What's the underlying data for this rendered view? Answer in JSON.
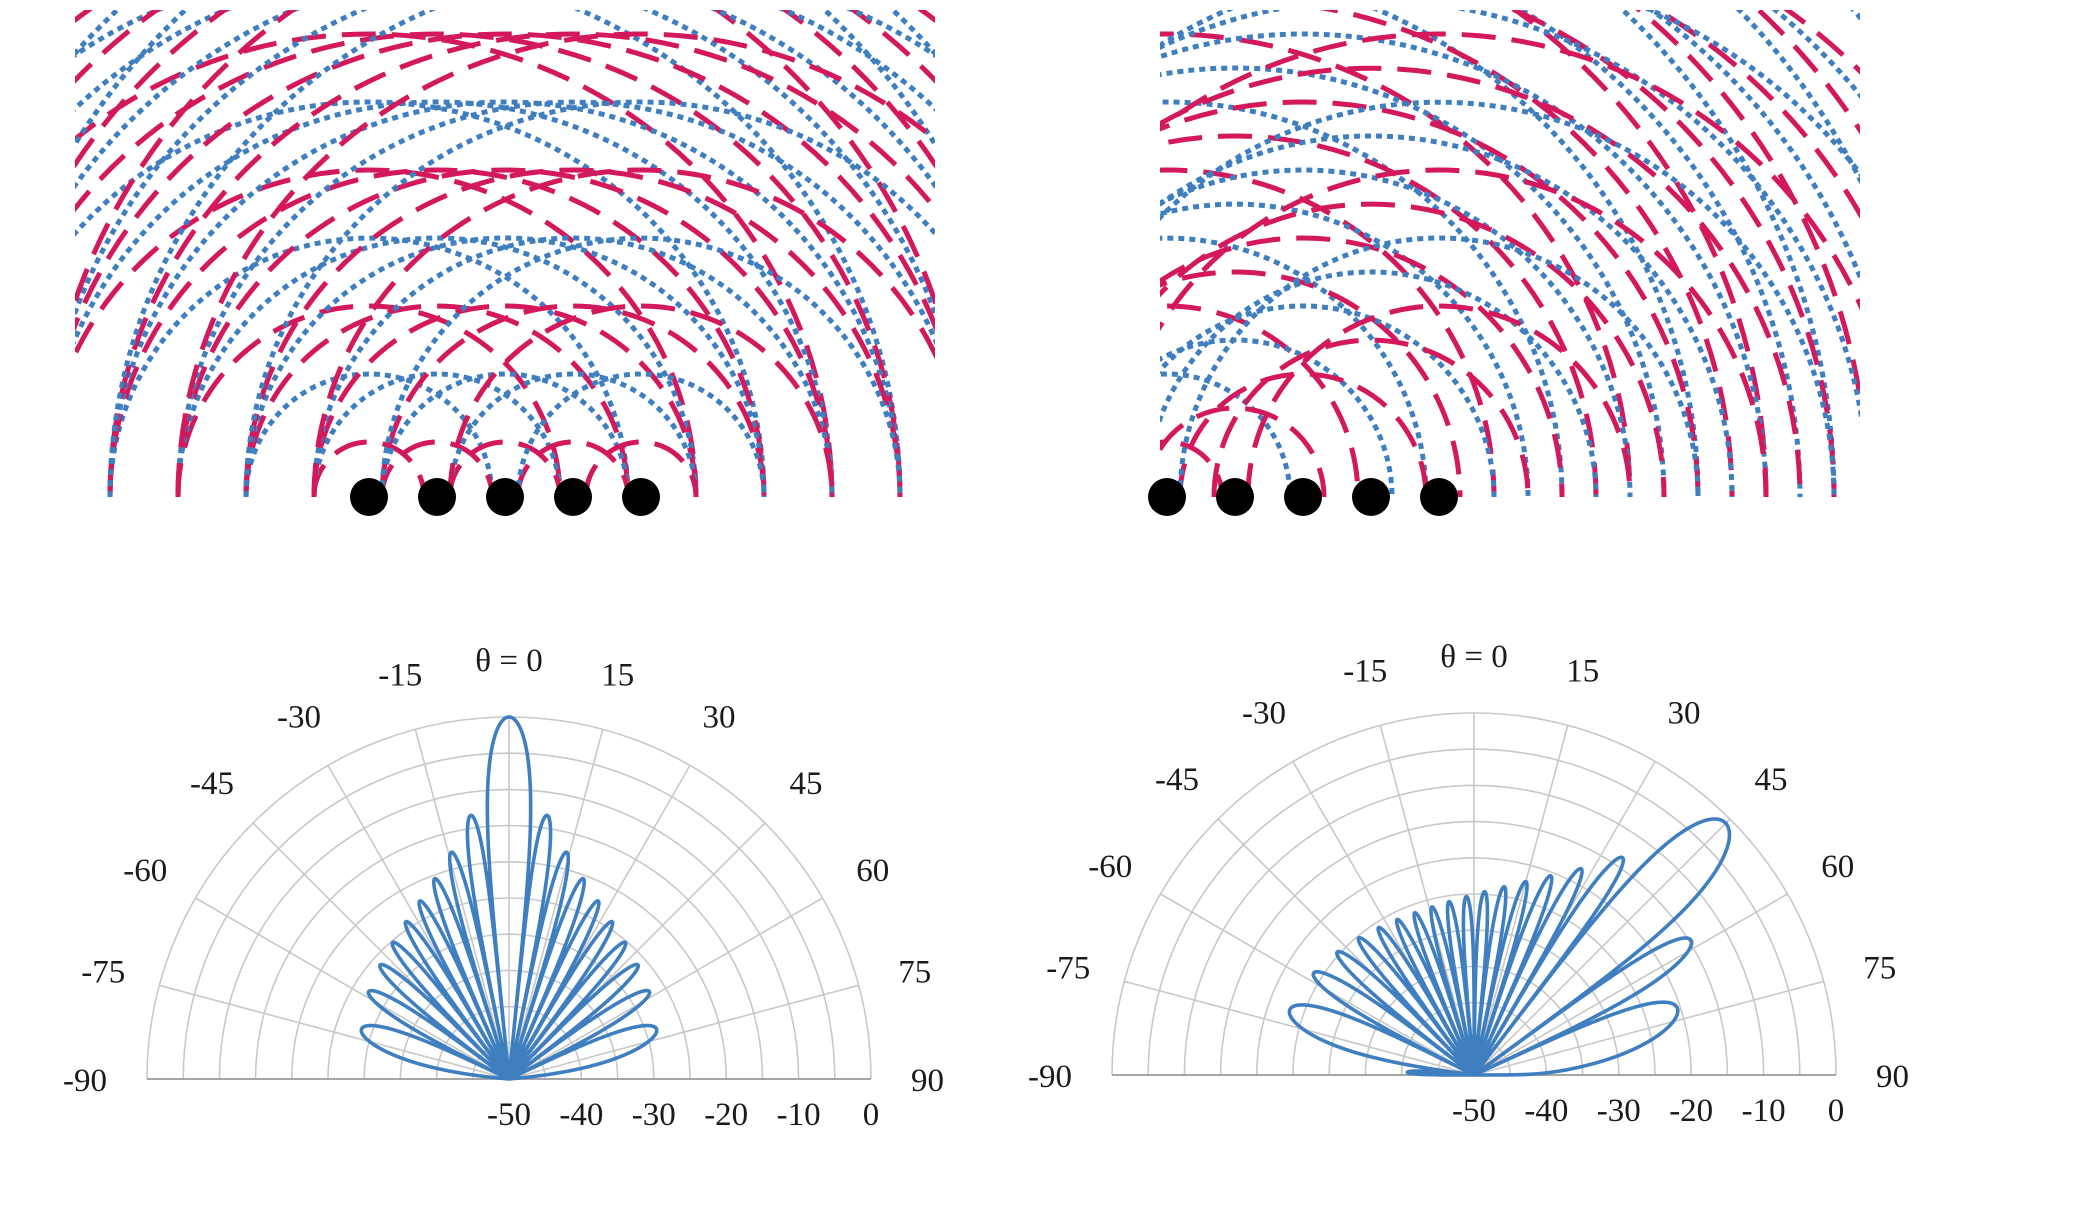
{
  "colors": {
    "crest": "#d4185c",
    "trough": "#3f7fc0",
    "pattern": "#3f7fc0",
    "grid": "#c8c8c8",
    "element": "#000000"
  },
  "wave_panels": [
    {
      "id": "broadside",
      "elements": 5,
      "phase_step": 0,
      "crest_style": "dashed",
      "trough_style": "dotted"
    },
    {
      "id": "steered",
      "elements": 5,
      "phase_step": 0.25,
      "crest_style": "dashed",
      "trough_style": "dotted"
    }
  ],
  "chart_data": [
    {
      "type": "polar",
      "id": "pattern-broadside",
      "angle_ticks": [
        -90,
        -75,
        -60,
        -45,
        -30,
        -15,
        0,
        15,
        30,
        45,
        60,
        75,
        90
      ],
      "angle_tick_labels": [
        "-90",
        "-75",
        "-60",
        "-45",
        "-30",
        "-15",
        "θ = 0",
        "15",
        "30",
        "45",
        "60",
        "75",
        "90"
      ],
      "radial_ticks": [
        -50,
        -40,
        -30,
        -20,
        -10,
        0
      ],
      "radial_tick_labels": [
        "-50",
        "-40",
        "-30",
        "-20",
        "-10",
        "0"
      ],
      "radial_range_db": [
        -50,
        0
      ],
      "grid": true,
      "elements": 20,
      "spacing_wavelengths": 0.5,
      "steer_angle_deg": 0,
      "sidelobe_taper": 0.5
    },
    {
      "type": "polar",
      "id": "pattern-steered",
      "angle_ticks": [
        -90,
        -75,
        -60,
        -45,
        -30,
        -15,
        0,
        15,
        30,
        45,
        60,
        75,
        90
      ],
      "angle_tick_labels": [
        "-90",
        "-75",
        "-60",
        "-45",
        "-30",
        "-15",
        "θ = 0",
        "15",
        "30",
        "45",
        "60",
        "75",
        "90"
      ],
      "radial_ticks": [
        -50,
        -40,
        -30,
        -20,
        -10,
        0
      ],
      "radial_tick_labels": [
        "-50",
        "-40",
        "-30",
        "-20",
        "-10",
        "0"
      ],
      "radial_range_db": [
        -50,
        0
      ],
      "grid": true,
      "elements": 20,
      "spacing_wavelengths": 0.5,
      "steer_angle_deg": 45,
      "sidelobe_taper": 0.55
    }
  ]
}
